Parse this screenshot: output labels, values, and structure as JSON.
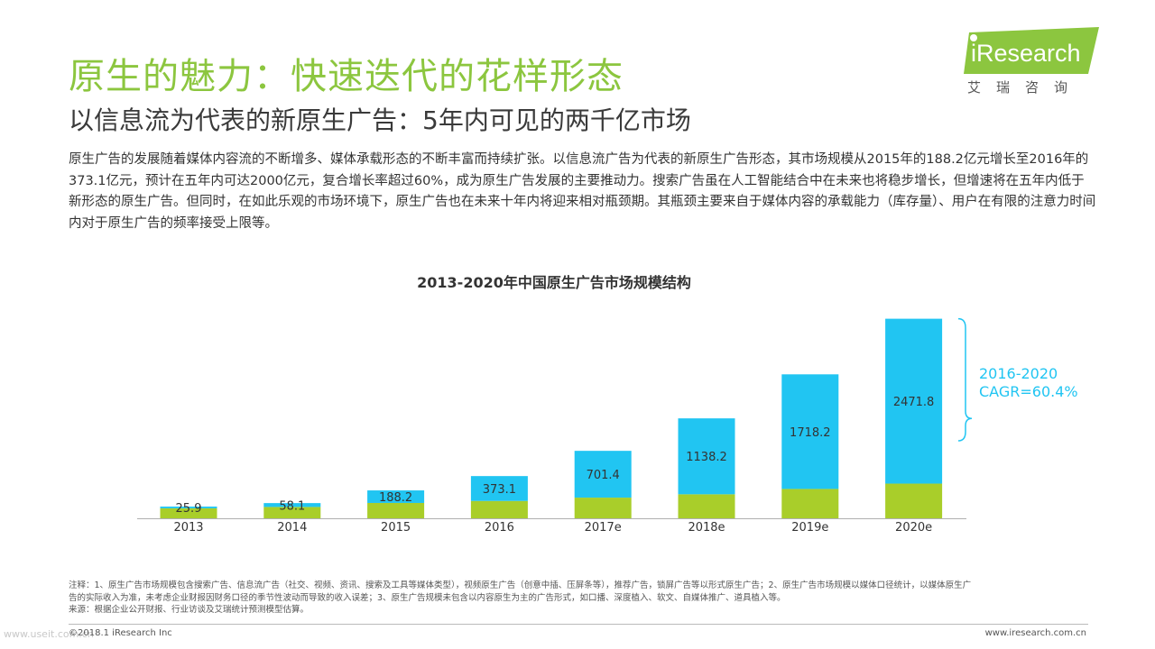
{
  "header": {
    "title": "原生的魅力：快速迭代的花样形态",
    "subtitle": "以信息流为代表的新原生广告：5年内可见的两千亿市场"
  },
  "logo": {
    "text": "iResearch",
    "subtext": "艾瑞咨询",
    "color": "#8cc63f"
  },
  "intro": {
    "text": "原生广告的发展随着媒体内容流的不断增多、媒体承载形态的不断丰富而持续扩张。以信息流广告为代表的新原生广告形态，其市场规模从2015年的188.2亿元增长至2016年的373.1亿元，预计在五年内可达2000亿元，复合增长率超过60%，成为原生广告发展的主要推动力。搜索广告虽在人工智能结合中在未来也将稳步增长，但增速将在五年内低于新形态的原生广告。但同时，在如此乐观的市场环境下，原生广告也在未来十年内将迎来相对瓶颈期。其瓶颈主要来自于媒体内容的承载能力（库存量）、用户在有限的注意力时间内对于原生广告的频率接受上限等。"
  },
  "chart_data": {
    "type": "bar",
    "stacked": true,
    "title": "2013-2020年中国原生广告市场规模结构",
    "categories": [
      "2013",
      "2014",
      "2015",
      "2016",
      "2017e",
      "2018e",
      "2019e",
      "2020e"
    ],
    "series": [
      {
        "values": [
          150,
          170,
          230,
          260,
          310,
          360,
          440,
          520
        ],
        "color": "#a9ce2a"
      },
      {
        "values": [
          25.9,
          58.1,
          188.2,
          373.1,
          701.4,
          1138.2,
          1718.2,
          2471.8
        ],
        "color": "#21c5f2",
        "labels_shown": true
      }
    ],
    "ylim": [
      0,
      3000
    ],
    "grid": false,
    "legend": "none",
    "annotation": {
      "line1": "2016-2020",
      "line2": "CAGR=60.4%",
      "color": "#21c5f2"
    }
  },
  "notes": {
    "line1": "注释：1、原生广告市场规模包含搜索广告、信息流广告（社交、视频、资讯、搜索及工具等媒体类型），视频原生广告（创意中插、压屏条等），推荐广告，锁屏广告等以形式原生广告；2、原生广告市场规模以媒体口径统计，以媒体原生广",
    "line2": "告的实际收入为准，未考虑企业财报因财务口径的季节性波动而导致的收入误差；3、原生广告规模未包含以内容原生为主的广告形式，如口播、深度植入、软文、自媒体推广、道具植入等。",
    "line3": "来源：根据企业公开财报、行业访谈及艾瑞统计预测模型估算。"
  },
  "footer": {
    "copyright": "©2018.1 iResearch Inc",
    "website": "www.iresearch.com.cn",
    "watermark": "www.useit.com.cn"
  }
}
